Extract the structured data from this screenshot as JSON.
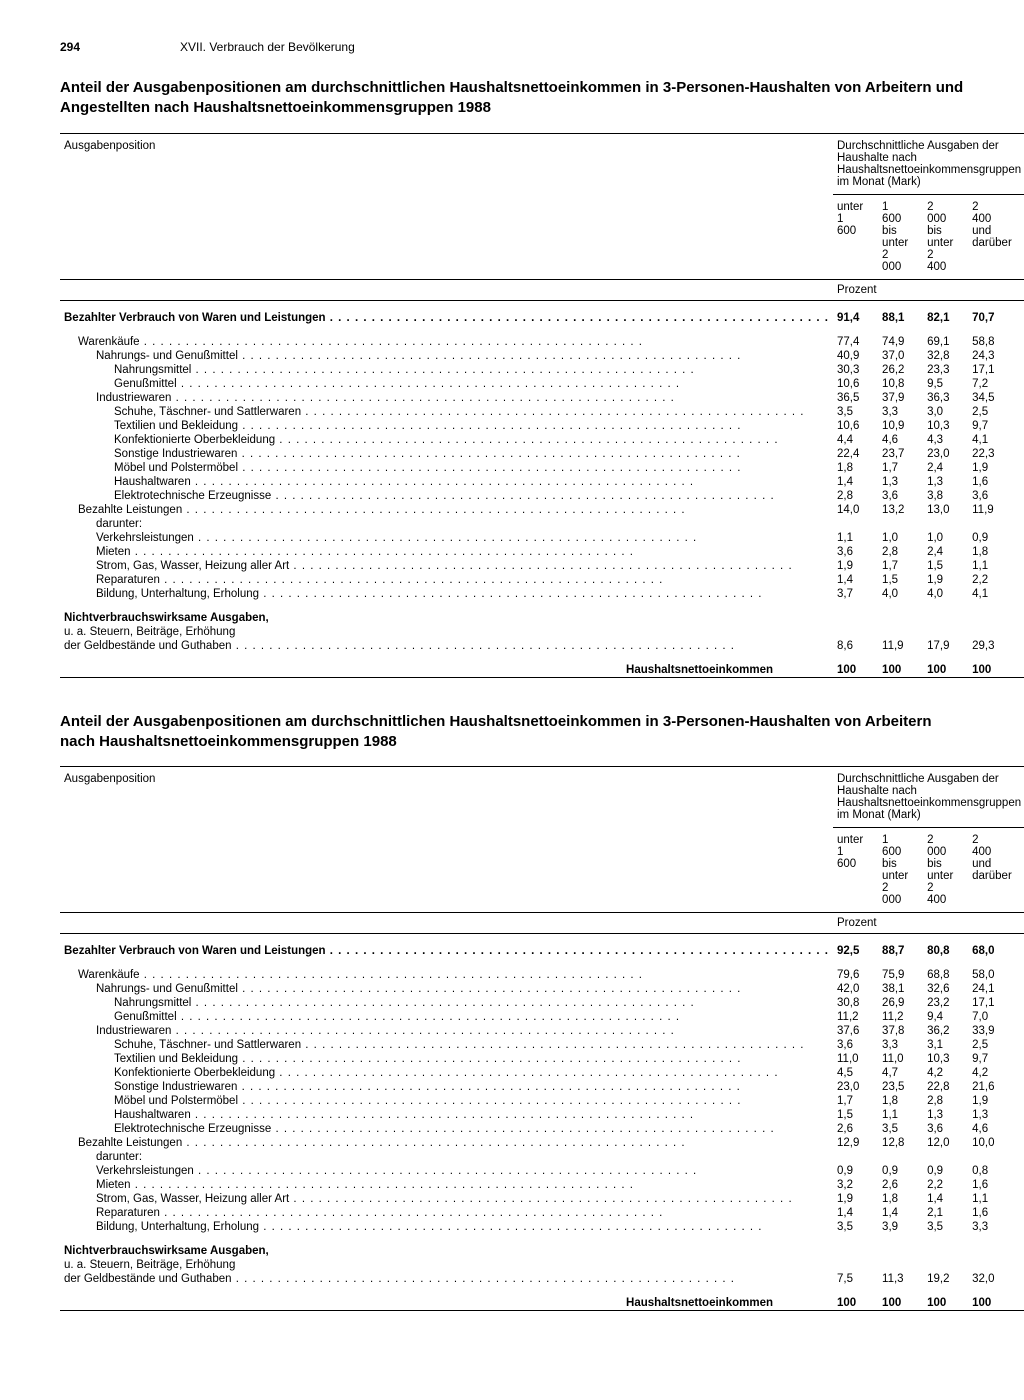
{
  "page_number": "294",
  "section": "XVII. Verbrauch der Bevölkerung",
  "col_header_top": "Durchschnittliche Ausgaben der Haushalte nach Haushaltsnettoeinkommensgruppen im Monat (Mark)",
  "col_label": "Ausgabenposition",
  "cols": [
    "unter 1 600",
    "1 600 bis unter 2 000",
    "2 000 bis unter 2 400",
    "2 400 und darüber"
  ],
  "unit": "Prozent",
  "tables": [
    {
      "title": "Anteil der Ausgabenpositionen am durchschnittlichen Haushaltsnettoeinkommen in 3-Personen-Haushalten von Arbeitern und Angestellten nach Haushaltsnettoeinkommensgruppen 1988",
      "rows": [
        {
          "label": "Bezahlter Verbrauch von Waren und Leistungen",
          "bold": true,
          "indent": 0,
          "dots": true,
          "v": [
            "91,4",
            "88,1",
            "82,1",
            "70,7"
          ],
          "gap_after": true
        },
        {
          "label": "Warenkäufe",
          "indent": 1,
          "dots": true,
          "v": [
            "77,4",
            "74,9",
            "69,1",
            "58,8"
          ]
        },
        {
          "label": "Nahrungs- und Genußmittel",
          "indent": 2,
          "dots": true,
          "v": [
            "40,9",
            "37,0",
            "32,8",
            "24,3"
          ]
        },
        {
          "label": "Nahrungsmittel",
          "indent": 3,
          "dots": true,
          "v": [
            "30,3",
            "26,2",
            "23,3",
            "17,1"
          ]
        },
        {
          "label": "Genußmittel",
          "indent": 3,
          "dots": true,
          "v": [
            "10,6",
            "10,8",
            "9,5",
            "7,2"
          ]
        },
        {
          "label": "Industriewaren",
          "indent": 2,
          "dots": true,
          "v": [
            "36,5",
            "37,9",
            "36,3",
            "34,5"
          ]
        },
        {
          "label": "Schuhe, Täschner- und Sattlerwaren",
          "indent": 3,
          "dots": true,
          "v": [
            "3,5",
            "3,3",
            "3,0",
            "2,5"
          ]
        },
        {
          "label": "Textilien und Bekleidung",
          "indent": 3,
          "dots": true,
          "v": [
            "10,6",
            "10,9",
            "10,3",
            "9,7"
          ]
        },
        {
          "label": "Konfektionierte Oberbekleidung",
          "indent": 3,
          "dots": true,
          "v": [
            "4,4",
            "4,6",
            "4,3",
            "4,1"
          ]
        },
        {
          "label": "Sonstige Industriewaren",
          "indent": 3,
          "dots": true,
          "v": [
            "22,4",
            "23,7",
            "23,0",
            "22,3"
          ]
        },
        {
          "label": "Möbel und Polstermöbel",
          "indent": 3,
          "dots": true,
          "v": [
            "1,8",
            "1,7",
            "2,4",
            "1,9"
          ]
        },
        {
          "label": "Haushaltwaren",
          "indent": 3,
          "dots": true,
          "v": [
            "1,4",
            "1,3",
            "1,3",
            "1,6"
          ]
        },
        {
          "label": "Elektrotechnische Erzeugnisse",
          "indent": 3,
          "dots": true,
          "v": [
            "2,8",
            "3,6",
            "3,8",
            "3,6"
          ]
        },
        {
          "label": "Bezahlte Leistungen",
          "indent": 1,
          "dots": true,
          "v": [
            "14,0",
            "13,2",
            "13,0",
            "11,9"
          ]
        },
        {
          "label": "darunter:",
          "indent": 2,
          "dots": false,
          "v": [
            "",
            "",
            "",
            ""
          ]
        },
        {
          "label": "Verkehrsleistungen",
          "indent": 2,
          "dots": true,
          "v": [
            "1,1",
            "1,0",
            "1,0",
            "0,9"
          ]
        },
        {
          "label": "Mieten",
          "indent": 2,
          "dots": true,
          "v": [
            "3,6",
            "2,8",
            "2,4",
            "1,8"
          ]
        },
        {
          "label": "Strom, Gas, Wasser, Heizung aller Art",
          "indent": 2,
          "dots": true,
          "v": [
            "1,9",
            "1,7",
            "1,5",
            "1,1"
          ]
        },
        {
          "label": "Reparaturen",
          "indent": 2,
          "dots": true,
          "v": [
            "1,4",
            "1,5",
            "1,9",
            "2,2"
          ]
        },
        {
          "label": "Bildung, Unterhaltung, Erholung",
          "indent": 2,
          "dots": true,
          "v": [
            "3,7",
            "4,0",
            "4,0",
            "4,1"
          ],
          "gap_after": true
        },
        {
          "label": "Nichtverbrauchswirksame Ausgaben,",
          "bold": true,
          "indent": 0,
          "dots": false,
          "v": [
            "",
            "",
            "",
            ""
          ]
        },
        {
          "label": "u. a. Steuern, Beiträge, Erhöhung",
          "indent": 0,
          "dots": false,
          "v": [
            "",
            "",
            "",
            ""
          ]
        },
        {
          "label": "der Geldbestände und Guthaben",
          "indent": 0,
          "dots": true,
          "v": [
            "8,6",
            "11,9",
            "17,9",
            "29,3"
          ],
          "gap_after": true
        },
        {
          "label": "Haushaltsnettoeinkommen",
          "bold": true,
          "right": true,
          "indent": 0,
          "dots": false,
          "v": [
            "100",
            "100",
            "100",
            "100"
          ]
        }
      ]
    },
    {
      "title": "Anteil der Ausgabenpositionen am durchschnittlichen Haushaltsnettoeinkommen in 3-Personen-Haushalten von Arbeitern nach Haushaltsnettoeinkommensgruppen 1988",
      "rows": [
        {
          "label": "Bezahlter Verbrauch von Waren und Leistungen",
          "bold": true,
          "indent": 0,
          "dots": true,
          "v": [
            "92,5",
            "88,7",
            "80,8",
            "68,0"
          ],
          "gap_after": true
        },
        {
          "label": "Warenkäufe",
          "indent": 1,
          "dots": true,
          "v": [
            "79,6",
            "75,9",
            "68,8",
            "58,0"
          ]
        },
        {
          "label": "Nahrungs- und Genußmittel",
          "indent": 2,
          "dots": true,
          "v": [
            "42,0",
            "38,1",
            "32,6",
            "24,1"
          ]
        },
        {
          "label": "Nahrungsmittel",
          "indent": 3,
          "dots": true,
          "v": [
            "30,8",
            "26,9",
            "23,2",
            "17,1"
          ]
        },
        {
          "label": "Genußmittel",
          "indent": 3,
          "dots": true,
          "v": [
            "11,2",
            "11,2",
            "9,4",
            "7,0"
          ]
        },
        {
          "label": "Industriewaren",
          "indent": 2,
          "dots": true,
          "v": [
            "37,6",
            "37,8",
            "36,2",
            "33,9"
          ]
        },
        {
          "label": "Schuhe, Täschner- und Sattlerwaren",
          "indent": 3,
          "dots": true,
          "v": [
            "3,6",
            "3,3",
            "3,1",
            "2,5"
          ]
        },
        {
          "label": "Textilien und Bekleidung",
          "indent": 3,
          "dots": true,
          "v": [
            "11,0",
            "11,0",
            "10,3",
            "9,7"
          ]
        },
        {
          "label": "Konfektionierte Oberbekleidung",
          "indent": 3,
          "dots": true,
          "v": [
            "4,5",
            "4,7",
            "4,2",
            "4,2"
          ]
        },
        {
          "label": "Sonstige Industriewaren",
          "indent": 3,
          "dots": true,
          "v": [
            "23,0",
            "23,5",
            "22,8",
            "21,6"
          ]
        },
        {
          "label": "Möbel und Polstermöbel",
          "indent": 3,
          "dots": true,
          "v": [
            "1,7",
            "1,8",
            "2,8",
            "1,9"
          ]
        },
        {
          "label": "Haushaltwaren",
          "indent": 3,
          "dots": true,
          "v": [
            "1,5",
            "1,1",
            "1,3",
            "1,3"
          ]
        },
        {
          "label": "Elektrotechnische Erzeugnisse",
          "indent": 3,
          "dots": true,
          "v": [
            "2,6",
            "3,5",
            "3,6",
            "4,6"
          ]
        },
        {
          "label": "Bezahlte Leistungen",
          "indent": 1,
          "dots": true,
          "v": [
            "12,9",
            "12,8",
            "12,0",
            "10,0"
          ]
        },
        {
          "label": "darunter:",
          "indent": 2,
          "dots": false,
          "v": [
            "",
            "",
            "",
            ""
          ]
        },
        {
          "label": "Verkehrsleistungen",
          "indent": 2,
          "dots": true,
          "v": [
            "0,9",
            "0,9",
            "0,9",
            "0,8"
          ]
        },
        {
          "label": "Mieten",
          "indent": 2,
          "dots": true,
          "v": [
            "3,2",
            "2,6",
            "2,2",
            "1,6"
          ]
        },
        {
          "label": "Strom, Gas, Wasser, Heizung aller Art",
          "indent": 2,
          "dots": true,
          "v": [
            "1,9",
            "1,8",
            "1,4",
            "1,1"
          ]
        },
        {
          "label": "Reparaturen",
          "indent": 2,
          "dots": true,
          "v": [
            "1,4",
            "1,4",
            "2,1",
            "1,6"
          ]
        },
        {
          "label": "Bildung, Unterhaltung, Erholung",
          "indent": 2,
          "dots": true,
          "v": [
            "3,5",
            "3,9",
            "3,5",
            "3,3"
          ],
          "gap_after": true
        },
        {
          "label": "Nichtverbrauchswirksame Ausgaben,",
          "bold": true,
          "indent": 0,
          "dots": false,
          "v": [
            "",
            "",
            "",
            ""
          ]
        },
        {
          "label": "u. a. Steuern, Beiträge, Erhöhung",
          "indent": 0,
          "dots": false,
          "v": [
            "",
            "",
            "",
            ""
          ]
        },
        {
          "label": "der Geldbestände und Guthaben",
          "indent": 0,
          "dots": true,
          "v": [
            "7,5",
            "11,3",
            "19,2",
            "32,0"
          ],
          "gap_after": true
        },
        {
          "label": "Haushaltsnettoeinkommen",
          "bold": true,
          "right": true,
          "indent": 0,
          "dots": false,
          "v": [
            "100",
            "100",
            "100",
            "100"
          ]
        }
      ]
    }
  ]
}
